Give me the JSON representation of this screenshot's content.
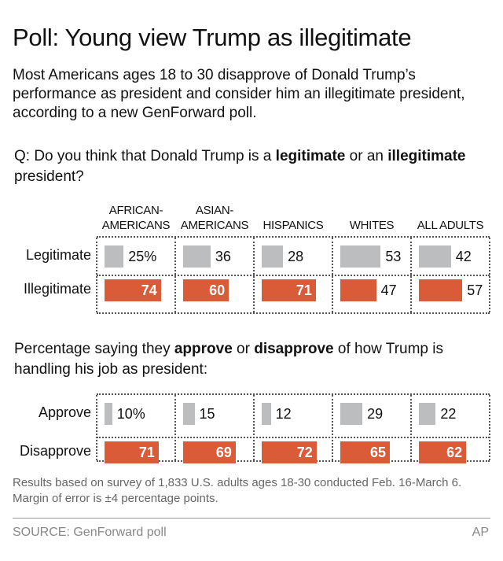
{
  "title": "Poll: Young view Trump as illegitimate",
  "subtitle": "Most Americans ages 18 to 30 disapprove of Donald Trump’s performance as president and consider him an illegitimate president, according to a new GenForward poll.",
  "q1": {
    "pre": "Q: Do you think that Donald Trump is a ",
    "b1": "legitimate",
    "mid": " or an ",
    "b2": "illegitimate",
    "post": " president?"
  },
  "q2": {
    "pre": "Percentage saying they ",
    "b1": "approve",
    "mid": " or ",
    "b2": "disapprove",
    "post": " of how Trump is handling his job as president:"
  },
  "note": "Results based on survey of 1,833 U.S. adults ages 18-30 conducted Feb. 16-March 6. Margin of error is ±4 percentage points.",
  "source": "SOURCE: GenForward poll",
  "credit": "AP",
  "colors": {
    "gray": "#bcbdbf",
    "orange": "#d95b37"
  },
  "chart_data": [
    {
      "type": "bar",
      "categories": [
        "AFRICAN-AMERICANS",
        "ASIAN-AMERICANS",
        "HISPANICS",
        "WHITES",
        "ALL ADULTS"
      ],
      "category_lines": [
        [
          "AFRICAN-",
          "AMERICANS"
        ],
        [
          "ASIAN-",
          "AMERICANS"
        ],
        [
          "",
          "HISPANICS"
        ],
        [
          "",
          "WHITES"
        ],
        [
          "",
          "ALL ADULTS"
        ]
      ],
      "unit": "%",
      "series": [
        {
          "name": "Legitimate",
          "values": [
            25,
            36,
            28,
            53,
            42
          ]
        },
        {
          "name": "Illegitimate",
          "values": [
            74,
            60,
            71,
            47,
            57
          ]
        }
      ]
    },
    {
      "type": "bar",
      "categories": [
        "AFRICAN-AMERICANS",
        "ASIAN-AMERICANS",
        "HISPANICS",
        "WHITES",
        "ALL ADULTS"
      ],
      "unit": "%",
      "series": [
        {
          "name": "Approve",
          "values": [
            10,
            15,
            12,
            29,
            22
          ]
        },
        {
          "name": "Disapprove",
          "values": [
            71,
            69,
            72,
            65,
            62
          ]
        }
      ]
    }
  ]
}
